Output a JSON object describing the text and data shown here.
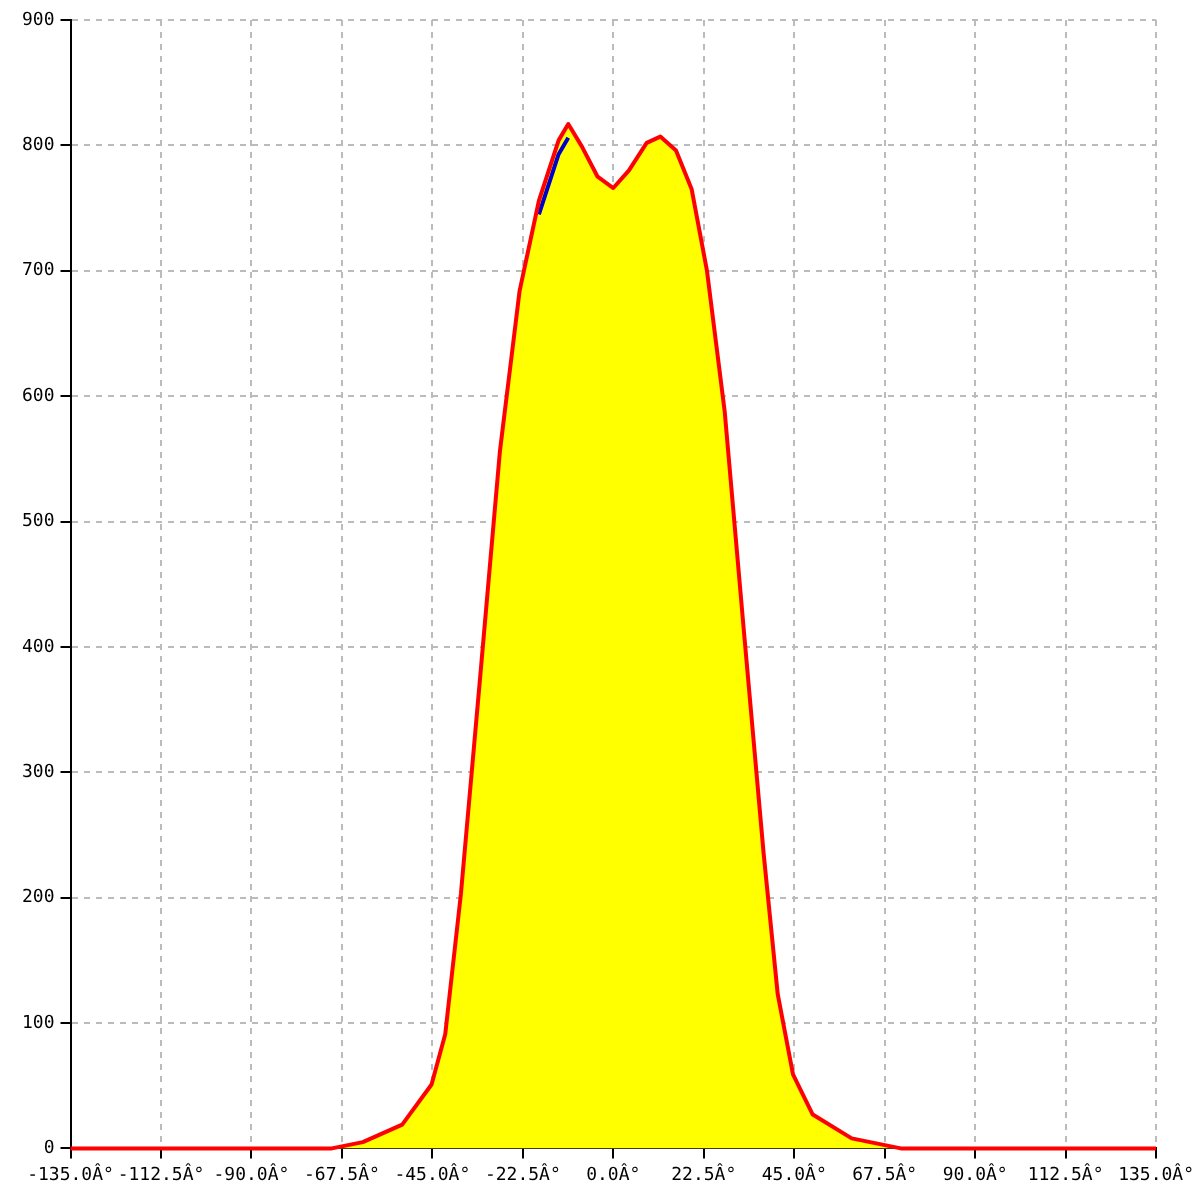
{
  "chart_data": {
    "type": "line",
    "xlim": [
      -135,
      135
    ],
    "ylim": [
      0,
      900
    ],
    "xticks": [
      {
        "value": -135,
        "label": "-135.0Â°"
      },
      {
        "value": -112.5,
        "label": "-112.5Â°"
      },
      {
        "value": -90,
        "label": "-90.0Â°"
      },
      {
        "value": -67.5,
        "label": "-67.5Â°"
      },
      {
        "value": -45,
        "label": "-45.0Â°"
      },
      {
        "value": -22.5,
        "label": "-22.5Â°"
      },
      {
        "value": 0,
        "label": "0.0Â°"
      },
      {
        "value": 22.5,
        "label": "22.5Â°"
      },
      {
        "value": 45,
        "label": "45.0Â°"
      },
      {
        "value": 67.5,
        "label": "67.5Â°"
      },
      {
        "value": 90,
        "label": "90.0Â°"
      },
      {
        "value": 112.5,
        "label": "112.5Â°"
      },
      {
        "value": 135,
        "label": "135.0Â°"
      }
    ],
    "yticks": [
      0,
      100,
      200,
      300,
      400,
      500,
      600,
      700,
      800,
      900
    ],
    "grid": true,
    "legend": false,
    "series": [
      {
        "type": "area",
        "color": "#ffff00",
        "x": [
          -70,
          -62.3,
          -52.5,
          -45.2,
          -41.8,
          -37.9,
          -33,
          -28.2,
          -23.3,
          -18.5,
          -13.6,
          -11.2,
          -7.8,
          -3.9,
          0,
          3.9,
          8.3,
          11.7,
          15.6,
          19.5,
          23.3,
          27.7,
          32.5,
          37.4,
          40.9,
          44.7,
          49.6,
          59.3,
          71.5
        ],
        "values": [
          0,
          5,
          19,
          51,
          91,
          203,
          380,
          556,
          684,
          756,
          804,
          817,
          799,
          775,
          766,
          780,
          802,
          807,
          796,
          765,
          700,
          588,
          412,
          235,
          123,
          59,
          27,
          8,
          0
        ]
      },
      {
        "type": "line",
        "color": "#0000cc",
        "x": [
          -18.5,
          -13.6,
          -11.2
        ],
        "values": [
          745,
          793,
          806
        ]
      },
      {
        "type": "line",
        "color": "#ff0000",
        "x": [
          -135,
          -70,
          -62.3,
          -52.5,
          -45.2,
          -41.8,
          -37.9,
          -33,
          -28.2,
          -23.3,
          -18.5,
          -13.6,
          -11.2,
          -7.8,
          -3.9,
          0,
          3.9,
          8.3,
          11.7,
          15.6,
          19.5,
          23.3,
          27.7,
          32.5,
          37.4,
          40.9,
          44.7,
          49.6,
          59.3,
          71.5,
          135
        ],
        "values": [
          0,
          0,
          5,
          19,
          51,
          91,
          203,
          380,
          556,
          684,
          756,
          804,
          817,
          799,
          775,
          766,
          780,
          802,
          807,
          796,
          765,
          700,
          588,
          412,
          235,
          123,
          59,
          27,
          8,
          0,
          0
        ]
      }
    ]
  }
}
